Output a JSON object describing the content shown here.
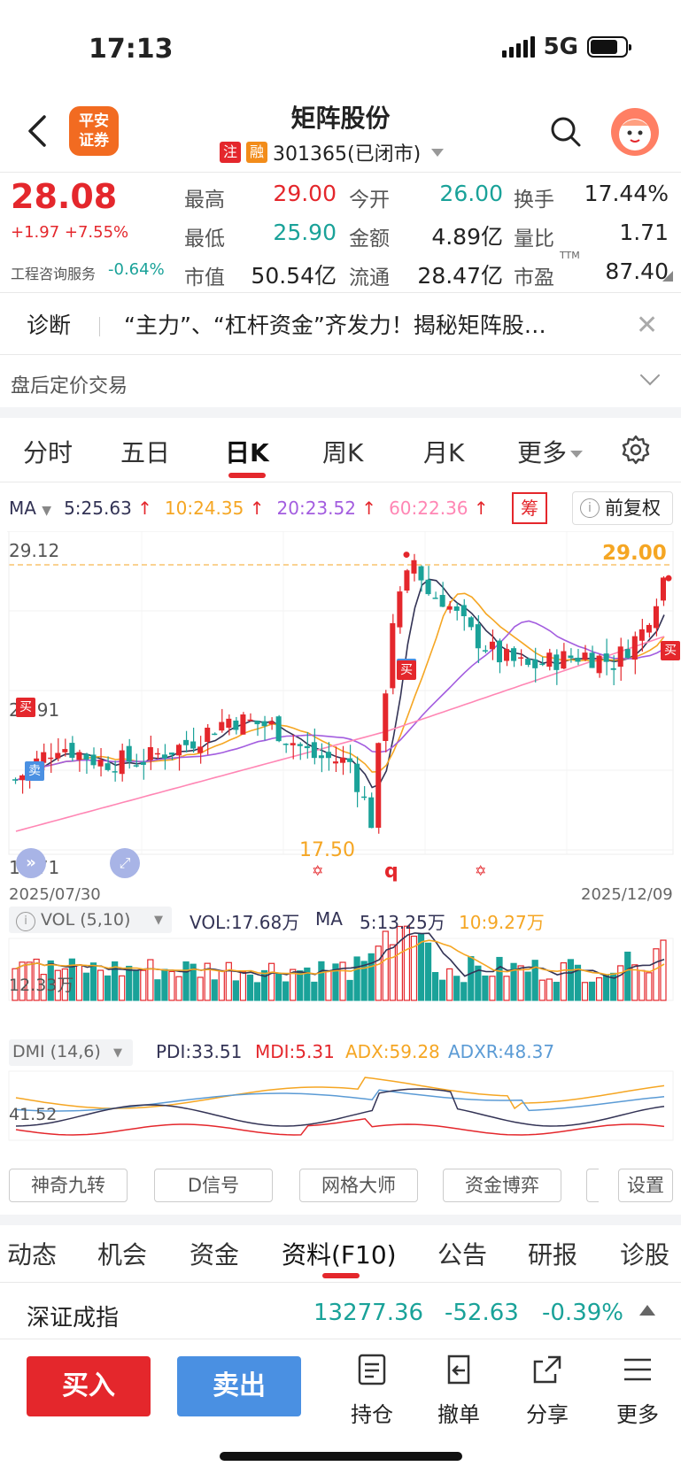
{
  "status": {
    "time": "17:13",
    "network": "5G"
  },
  "header": {
    "title": "矩阵股份",
    "logo_text": "平安\n证券",
    "tag1": "注",
    "tag2": "融",
    "code_status": "301365(已闭市)"
  },
  "quote": {
    "price": "28.08",
    "change": "+1.97 +7.55%",
    "sector": "工程咨询服务",
    "sector_change": "-0.64%",
    "rows": [
      [
        {
          "label": "最高",
          "value": "29.00",
          "color": "red"
        },
        {
          "label": "今开",
          "value": "26.00",
          "color": "green"
        },
        {
          "label": "换手",
          "value": "17.44%",
          "color": "dark"
        }
      ],
      [
        {
          "label": "最低",
          "value": "25.90",
          "color": "green"
        },
        {
          "label": "金额",
          "value": "4.89亿",
          "color": "dark"
        },
        {
          "label": "量比",
          "value": "1.71",
          "color": "dark"
        }
      ],
      [
        {
          "label": "市值",
          "value": "50.54亿",
          "color": "dark"
        },
        {
          "label": "流通",
          "value": "28.47亿",
          "color": "dark"
        },
        {
          "label": "市盈",
          "value": "87.40",
          "color": "dark"
        }
      ]
    ],
    "pe_superscript": "TTM"
  },
  "diagnosis": {
    "label": "诊断",
    "text": "“主力”、“杠杆资金”齐发力！揭秘矩阵股…"
  },
  "after_hours": "盘后定价交易",
  "kline_tabs": [
    "分时",
    "五日",
    "日K",
    "周K",
    "月K",
    "更多"
  ],
  "active_kline_tab": "日K",
  "ma": {
    "label": "MA",
    "ma5": "5:25.63",
    "ma10": "10:24.35",
    "ma20": "20:23.52",
    "ma60": "60:22.36",
    "chou": "筹",
    "fuquan": "前复权"
  },
  "chart": {
    "y_high": "29.12",
    "y_mid": "23.91",
    "y_low": "18.71",
    "max_marker": "29.00",
    "min_marker": "17.50",
    "date_start": "2025/07/30",
    "date_end": "2025/12/09",
    "buy_tag": "买",
    "sell_tag": "卖",
    "q_mark": "q",
    "colors": {
      "up": "#e4272c",
      "down": "#1aa299",
      "ma5": "#333355",
      "ma10": "#f5a623",
      "ma20": "#a35ddf",
      "ma60": "#ff86b4"
    }
  },
  "chart_data": {
    "type": "candlestick",
    "x_range": [
      "2025/07/30",
      "2025/12/09"
    ],
    "ylim": [
      17.5,
      29.12
    ],
    "last_close": 28.08,
    "high_marker": 29.0,
    "low_marker": 17.5
  },
  "volume": {
    "label": "VOL (5,10)",
    "vol": "VOL:17.68万",
    "ma_label": "MA",
    "ma5": "5:13.25万",
    "ma10": "10:9.27万",
    "axis": "12.33万"
  },
  "dmi": {
    "label": "DMI (14,6)",
    "pdi": "PDI:33.51",
    "mdi": "MDI:5.31",
    "adx": "ADX:59.28",
    "adxr": "ADXR:48.37",
    "axis": "41.52"
  },
  "tools": [
    "神奇九转",
    "D信号",
    "网格大师",
    "资金博弈",
    "设置"
  ],
  "bottom_tabs": [
    "动态",
    "机会",
    "资金",
    "资料(F10)",
    "公告",
    "研报",
    "诊股"
  ],
  "active_bottom_tab": "资料(F10)",
  "index": {
    "name": "深证成指",
    "value": "13277.36",
    "change": "-52.63",
    "percent": "-0.39%"
  },
  "actions": {
    "buy": "买入",
    "sell": "卖出",
    "hold": "持仓",
    "cancel": "撤单",
    "share": "分享",
    "more": "更多"
  }
}
